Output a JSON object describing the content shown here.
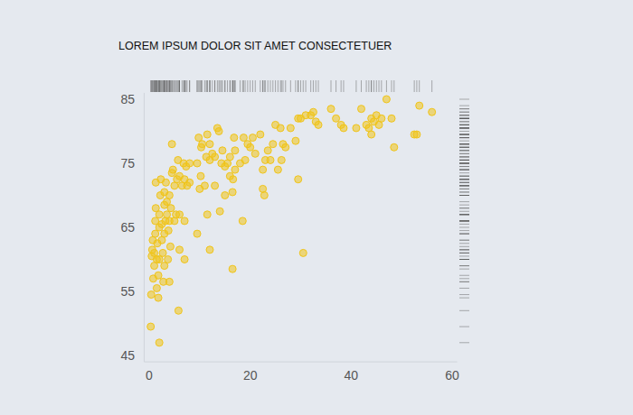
{
  "chart_data": {
    "type": "scatter",
    "title": "LOREM IPSUM DOLOR SIT AMET CONSECTETUER",
    "x": [
      0.3,
      0.4,
      0.5,
      0.6,
      0.7,
      0.8,
      1,
      1,
      1.2,
      1.2,
      1.3,
      1.3,
      1.5,
      1.5,
      1.6,
      1.8,
      1.8,
      2,
      2,
      2,
      2,
      2.2,
      2.3,
      2.5,
      2.5,
      2.7,
      2.8,
      3,
      3,
      3,
      3,
      3.2,
      3.3,
      3.5,
      3.5,
      3.7,
      3.8,
      4,
      4,
      4,
      4.2,
      4.3,
      4.5,
      4.5,
      4.7,
      5,
      5,
      5.3,
      5.5,
      5.7,
      5.8,
      6,
      6,
      6,
      6.5,
      6.8,
      7,
      7,
      7,
      7.3,
      7.5,
      8,
      8,
      9.5,
      9.5,
      9.8,
      10,
      10.2,
      10.3,
      10.5,
      11,
      11.3,
      11.5,
      11.5,
      12,
      12,
      12,
      12.5,
      13,
      13,
      13.5,
      13.8,
      14,
      14.3,
      14.5,
      15,
      15,
      15.5,
      16,
      16,
      16.5,
      16.5,
      16.6,
      16.8,
      17,
      17,
      18,
      18.5,
      18.7,
      19,
      19.5,
      20,
      20.5,
      21,
      22,
      22.5,
      22.5,
      22.8,
      23,
      23.5,
      24,
      24.5,
      25,
      25.5,
      26,
      26.2,
      26.5,
      27,
      28,
      29,
      29.5,
      29.5,
      30,
      30.5,
      31,
      32,
      32.5,
      33,
      33.5,
      36,
      37,
      38,
      38.5,
      41,
      42,
      43,
      43.5,
      44,
      44,
      44.5,
      45,
      45.5,
      46,
      47,
      48,
      48.5,
      52.5,
      53,
      53.5,
      56
    ],
    "values": [
      49.5,
      54.5,
      60.5,
      61.5,
      63,
      57,
      59,
      61,
      64,
      66,
      68,
      72,
      55.5,
      60,
      62.5,
      54,
      57.5,
      47,
      60,
      65,
      67,
      70,
      72.5,
      63,
      65.5,
      61,
      56.5,
      59,
      64,
      68.5,
      70.5,
      66,
      72,
      67,
      69,
      60,
      64.5,
      56.5,
      66,
      70,
      62,
      68,
      73.5,
      78,
      74,
      66,
      71.5,
      67,
      72.5,
      75.5,
      52,
      61.5,
      67,
      73,
      71.5,
      75,
      60,
      66,
      72.5,
      74.5,
      71.5,
      72,
      75,
      64,
      75,
      79,
      71,
      73,
      77.5,
      78,
      71.5,
      76,
      67,
      79.5,
      61.5,
      75.5,
      78,
      76.5,
      76,
      71.5,
      80.5,
      80,
      67.5,
      75,
      77,
      74.5,
      70,
      75,
      73,
      76,
      70.5,
      58.5,
      72.5,
      79,
      74,
      77,
      75,
      66,
      79,
      75.5,
      78,
      77.5,
      79,
      76.5,
      79.5,
      74,
      71,
      70,
      75.5,
      77,
      75.5,
      78,
      81,
      74,
      80.5,
      75.5,
      78,
      77.5,
      80.5,
      78.5,
      82,
      72.5,
      82,
      61,
      82.5,
      82.5,
      83,
      81.5,
      81,
      83.5,
      82,
      81,
      80.5,
      80.5,
      83.5,
      81,
      80.5,
      82,
      79.5,
      81.5,
      82.5,
      81,
      82,
      85,
      82,
      77.5,
      79.5,
      79.5,
      84,
      83
    ],
    "color": "#f0c419",
    "marker": "circle",
    "xlim": [
      -1,
      61
    ],
    "ylim": [
      44,
      86
    ],
    "xticks": [
      0,
      20,
      40,
      60
    ],
    "yticks": [
      45,
      55,
      65,
      75,
      85
    ],
    "grid": false
  }
}
